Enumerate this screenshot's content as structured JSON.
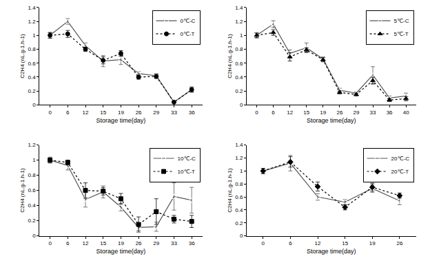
{
  "chart_data": [
    {
      "type": "line",
      "x_label": "Storage time(day)",
      "y_label": "C2H4 (nL.g-1.h-1)",
      "categories": [
        "0",
        "6",
        "12",
        "15",
        "19",
        "26",
        "29",
        "33",
        "36"
      ],
      "ylim": [
        0,
        1.4
      ],
      "yticks": [
        0,
        0.2,
        0.4,
        0.6,
        0.8,
        1,
        1.2,
        1.4
      ],
      "grid": false,
      "legend": "top-right",
      "series": [
        {
          "name": "0℃-C",
          "color": "#555555",
          "marker": "circle-open",
          "line_style": "solid",
          "values": [
            1.0,
            1.2,
            0.85,
            0.63,
            0.65,
            0.45,
            0.42,
            0.04,
            0.22
          ],
          "errors": [
            0.04,
            0.04,
            0.04,
            0.08,
            0.07,
            0.03,
            0.03,
            0.01,
            0.04
          ]
        },
        {
          "name": "0℃-T",
          "color": "#000000",
          "marker": "circle",
          "line_style": "dot",
          "values": [
            1.0,
            1.02,
            0.8,
            0.64,
            0.74,
            0.4,
            0.41,
            0.04,
            0.22
          ],
          "errors": [
            0.04,
            0.05,
            0.03,
            0.05,
            0.04,
            0.03,
            0.03,
            0.01,
            0.03
          ]
        }
      ]
    },
    {
      "type": "line",
      "x_label": "Storage time(day)",
      "y_label": "C2H4 (nL.g-1.h-1)",
      "categories": [
        "0",
        "6",
        "12",
        "15",
        "19",
        "26",
        "29",
        "33",
        "36",
        "40"
      ],
      "ylim": [
        0,
        1.4
      ],
      "yticks": [
        0,
        0.2,
        0.4,
        0.6,
        0.8,
        1,
        1.2,
        1.4
      ],
      "grid": false,
      "legend": "top-right",
      "series": [
        {
          "name": "5℃-C",
          "color": "#555555",
          "marker": "triangle-up-open",
          "line_style": "solid",
          "values": [
            1.0,
            1.16,
            0.74,
            0.82,
            0.66,
            0.21,
            0.17,
            0.43,
            0.1,
            0.13
          ],
          "errors": [
            0.04,
            0.05,
            0.05,
            0.07,
            0.03,
            0.03,
            0.02,
            0.12,
            0.03,
            0.04
          ]
        },
        {
          "name": "5℃-T",
          "color": "#000000",
          "marker": "triangle-up",
          "line_style": "dot",
          "values": [
            1.0,
            1.04,
            0.69,
            0.79,
            0.65,
            0.18,
            0.15,
            0.35,
            0.07,
            0.09
          ],
          "errors": [
            0.03,
            0.04,
            0.06,
            0.03,
            0.03,
            0.02,
            0.02,
            0.05,
            0.02,
            0.03
          ]
        }
      ]
    },
    {
      "type": "line",
      "x_label": "Storage time(day)",
      "y_label": "C2H4 (nL.g-1.h-1)",
      "categories": [
        "0",
        "6",
        "12",
        "15",
        "19",
        "26",
        "29",
        "33",
        "36"
      ],
      "ylim": [
        0,
        1.2
      ],
      "yticks": [
        0,
        0.2,
        0.4,
        0.6,
        0.8,
        1,
        1.2
      ],
      "grid": false,
      "legend": "top-right",
      "series": [
        {
          "name": "10℃-C",
          "color": "#555555",
          "marker": "square-open",
          "line_style": "solid",
          "values": [
            1.0,
            0.93,
            0.48,
            0.58,
            0.38,
            0.11,
            0.12,
            0.52,
            0.47
          ],
          "errors": [
            0.04,
            0.06,
            0.1,
            0.08,
            0.05,
            0.04,
            0.06,
            0.18,
            0.17
          ]
        },
        {
          "name": "10℃-T",
          "color": "#000000",
          "marker": "square",
          "line_style": "dot",
          "values": [
            1.0,
            0.97,
            0.6,
            0.59,
            0.49,
            0.15,
            0.32,
            0.22,
            0.19
          ],
          "errors": [
            0.03,
            0.03,
            0.1,
            0.05,
            0.07,
            0.1,
            0.17,
            0.05,
            0.08
          ]
        }
      ]
    },
    {
      "type": "line",
      "x_label": "Storage time(day)",
      "y_label": "C2H4 (nL.g-1.h-1)",
      "categories": [
        "0",
        "6",
        "12",
        "15",
        "19",
        "26"
      ],
      "ylim": [
        0,
        1.4
      ],
      "yticks": [
        0,
        0.2,
        0.4,
        0.6,
        0.8,
        1,
        1.2,
        1.4
      ],
      "grid": false,
      "legend": "top-right",
      "series": [
        {
          "name": "20℃-C",
          "color": "#555555",
          "marker": "diamond-open",
          "line_style": "solid",
          "values": [
            1.0,
            1.12,
            0.6,
            0.52,
            0.73,
            0.54
          ],
          "errors": [
            0.04,
            0.12,
            0.05,
            0.04,
            0.06,
            0.06
          ]
        },
        {
          "name": "20℃-T",
          "color": "#000000",
          "marker": "diamond",
          "line_style": "dot",
          "values": [
            1.0,
            1.14,
            0.76,
            0.44,
            0.75,
            0.62
          ],
          "errors": [
            0.04,
            0.08,
            0.07,
            0.04,
            0.06,
            0.04
          ]
        }
      ]
    }
  ]
}
